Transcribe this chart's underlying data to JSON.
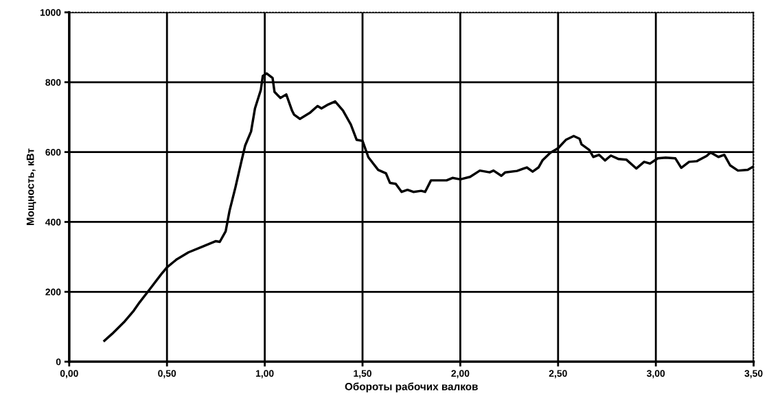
{
  "chart_data": {
    "type": "line",
    "xlabel": "Обороты рабочих валков",
    "ylabel": "Мощность, кВт",
    "xlim": [
      0,
      3.5
    ],
    "ylim": [
      0,
      1000
    ],
    "xticks": [
      {
        "value": 0,
        "label": "0,00"
      },
      {
        "value": 0.5,
        "label": "0,50"
      },
      {
        "value": 1,
        "label": "1,00"
      },
      {
        "value": 1.5,
        "label": "1,50"
      },
      {
        "value": 2,
        "label": "2,00"
      },
      {
        "value": 2.5,
        "label": "2,50"
      },
      {
        "value": 3,
        "label": "3,00"
      },
      {
        "value": 3.5,
        "label": "3,50"
      }
    ],
    "yticks": [
      0,
      200,
      400,
      600,
      800,
      1000
    ],
    "grid": true,
    "marker": "none",
    "line_style": "solid",
    "series": [
      {
        "color": "#000000",
        "x": [
          0.18,
          0.22,
          0.28,
          0.33,
          0.36,
          0.41,
          0.47,
          0.5,
          0.55,
          0.61,
          0.68,
          0.75,
          0.77,
          0.8,
          0.82,
          0.85,
          0.88,
          0.9,
          0.93,
          0.95,
          0.98,
          0.99,
          1.01,
          1.04,
          1.05,
          1.08,
          1.11,
          1.14,
          1.15,
          1.18,
          1.23,
          1.27,
          1.29,
          1.32,
          1.36,
          1.4,
          1.44,
          1.47,
          1.5,
          1.53,
          1.58,
          1.62,
          1.64,
          1.67,
          1.7,
          1.73,
          1.76,
          1.8,
          1.82,
          1.85,
          1.93,
          1.96,
          2.0,
          2.05,
          2.1,
          2.15,
          2.17,
          2.21,
          2.23,
          2.29,
          2.34,
          2.37,
          2.4,
          2.42,
          2.46,
          2.5,
          2.54,
          2.58,
          2.61,
          2.62,
          2.66,
          2.68,
          2.71,
          2.74,
          2.77,
          2.81,
          2.85,
          2.9,
          2.94,
          2.97,
          3.01,
          3.05,
          3.1,
          3.13,
          3.17,
          3.21,
          3.26,
          3.28,
          3.32,
          3.35,
          3.38,
          3.42,
          3.47,
          3.5
        ],
        "values": [
          60,
          80,
          113,
          146,
          170,
          206,
          250,
          270,
          293,
          313,
          329,
          345,
          343,
          373,
          432,
          499,
          572,
          619,
          659,
          725,
          778,
          818,
          825,
          812,
          772,
          755,
          765,
          718,
          707,
          695,
          712,
          732,
          725,
          735,
          745,
          719,
          679,
          635,
          632,
          585,
          549,
          539,
          512,
          509,
          486,
          492,
          486,
          489,
          486,
          519,
          519,
          526,
          522,
          529,
          547,
          542,
          547,
          532,
          542,
          546,
          556,
          544,
          556,
          576,
          598,
          611,
          635,
          646,
          638,
          622,
          606,
          586,
          592,
          576,
          590,
          580,
          578,
          553,
          572,
          567,
          582,
          584,
          582,
          555,
          572,
          574,
          589,
          599,
          586,
          592,
          562,
          547,
          549,
          559
        ]
      }
    ]
  }
}
